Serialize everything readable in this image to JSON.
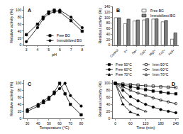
{
  "chart_data": [
    {
      "title": "A",
      "type": "line",
      "x_label": "pH",
      "y_label": "Relative activity (%)",
      "xlim": [
        2.8,
        8.2
      ],
      "xticks": [
        3,
        4,
        5,
        6,
        7,
        8
      ],
      "ylim": [
        0,
        110
      ],
      "yticks": [
        0,
        20,
        40,
        60,
        80,
        100
      ],
      "grid": false,
      "legend": "lower right",
      "x": [
        3,
        4,
        4.5,
        5,
        5.5,
        6,
        7,
        8
      ],
      "series": [
        {
          "name": "Free BG",
          "color": "#000000",
          "marker": "square",
          "values": [
            30,
            60,
            80,
            95,
            100,
            95,
            70,
            40
          ]
        },
        {
          "name": "Immobilized BG",
          "color": "#000000",
          "marker": "circle",
          "values": [
            10,
            50,
            75,
            90,
            95,
            100,
            80,
            50
          ]
        }
      ]
    },
    {
      "title": "B",
      "type": "bar",
      "y_label": "Residual activity (%)",
      "ylim": [
        0,
        140
      ],
      "yticks": [
        0,
        20,
        40,
        60,
        80,
        100,
        120,
        140
      ],
      "grid": false,
      "legend": "upper right",
      "categories": [
        "Control",
        "K+",
        "Na+",
        "Ca2+",
        "Mg2+",
        "Cu2+",
        "Fe3+"
      ],
      "series": [
        {
          "name": "Free BG",
          "color": "#ffffff",
          "values": [
            100,
            78,
            88,
            92,
            95,
            85,
            22
          ]
        },
        {
          "name": "Immobilized BG",
          "color": "#808080",
          "values": [
            100,
            95,
            92,
            97,
            96,
            90,
            45
          ]
        }
      ]
    },
    {
      "title": "C",
      "type": "line",
      "x_label": "Temperature (°C)",
      "y_label": "Relative activity (%)",
      "xlim": [
        27,
        83
      ],
      "xticks": [
        30,
        40,
        50,
        60,
        70,
        80
      ],
      "ylim": [
        0,
        110
      ],
      "yticks": [
        0,
        20,
        40,
        60,
        80,
        100
      ],
      "grid": false,
      "x": [
        30,
        40,
        45,
        50,
        55,
        60,
        65,
        70,
        80
      ],
      "series": [
        {
          "color": "#000000",
          "marker": "square",
          "values": [
            20,
            35,
            45,
            55,
            75,
            100,
            70,
            40,
            10
          ]
        },
        {
          "color": "#000000",
          "marker": "circle",
          "values": [
            25,
            40,
            50,
            60,
            70,
            85,
            100,
            65,
            35
          ]
        }
      ]
    },
    {
      "title": "D",
      "type": "line",
      "x_label": "Time (min)",
      "y_label": "Residual activity (%)",
      "xlim": [
        -10,
        250
      ],
      "xticks": [
        0,
        60,
        120,
        180,
        240
      ],
      "ylim": [
        0,
        110
      ],
      "yticks": [
        0,
        20,
        40,
        60,
        80,
        100
      ],
      "grid": false,
      "legend": "top",
      "x": [
        0,
        30,
        60,
        90,
        120,
        150,
        180,
        210,
        240
      ],
      "series": [
        {
          "name": "Free 50°C",
          "color": "#000000",
          "marker": "square",
          "values": [
            100,
            95,
            90,
            86,
            82,
            78,
            75,
            72,
            70
          ]
        },
        {
          "name": "Imm 50°C",
          "color": "#000000",
          "marker": "square-open",
          "values": [
            100,
            98,
            96,
            95,
            93,
            92,
            90,
            89,
            88
          ]
        },
        {
          "name": "Free 60°C",
          "color": "#000000",
          "marker": "circle",
          "values": [
            100,
            80,
            62,
            50,
            40,
            32,
            25,
            20,
            16
          ]
        },
        {
          "name": "Imm 60°C",
          "color": "#000000",
          "marker": "circle-open",
          "values": [
            100,
            90,
            80,
            72,
            65,
            58,
            52,
            47,
            42
          ]
        },
        {
          "name": "Free 70°C",
          "color": "#000000",
          "marker": "triangle",
          "values": [
            100,
            40,
            18,
            10,
            null,
            null,
            null,
            null,
            null
          ]
        },
        {
          "name": "Imm 70°C",
          "color": "#000000",
          "marker": "triangle-open",
          "values": [
            100,
            60,
            40,
            28,
            20,
            null,
            null,
            null,
            null
          ]
        }
      ]
    }
  ]
}
